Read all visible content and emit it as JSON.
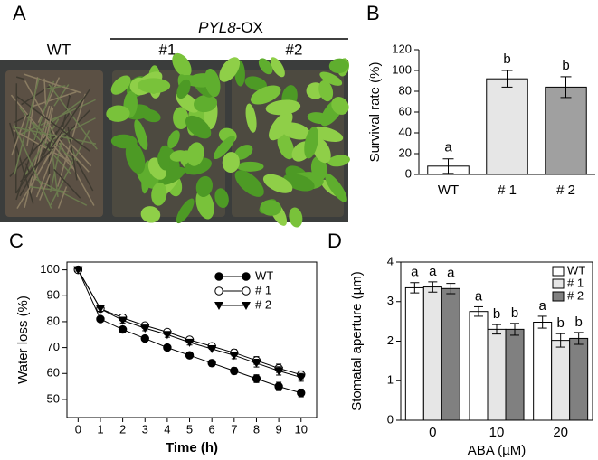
{
  "photo": {
    "panel": "A",
    "title_parts": [
      "PYL8",
      "-OX"
    ],
    "labels": [
      "WT",
      "#1",
      "#2"
    ]
  },
  "chart_data": [
    {
      "type": "bar",
      "panel": "B",
      "ylabel": "Survival rate (%)",
      "categories": [
        "WT",
        "# 1",
        "# 2"
      ],
      "values": [
        8,
        92,
        84
      ],
      "errors": [
        7,
        8,
        10
      ],
      "letters": [
        "a",
        "b",
        "b"
      ],
      "colors": [
        "#ffffff",
        "#e6e6e6",
        "#a0a0a0"
      ],
      "ylim": [
        0,
        120
      ],
      "yticks": [
        0,
        20,
        40,
        60,
        80,
        100,
        120
      ]
    },
    {
      "type": "line",
      "panel": "C",
      "xlabel": "Time (h)",
      "ylabel": "Water loss (%)",
      "x": [
        0,
        1,
        2,
        3,
        4,
        5,
        6,
        7,
        8,
        9,
        10
      ],
      "series": [
        {
          "name": "WT",
          "marker": "filled-circle",
          "color": "#000000",
          "values": [
            100,
            81,
            77,
            73.5,
            70,
            67,
            64,
            61,
            58,
            55,
            52.5
          ],
          "errors": [
            0.5,
            1,
            1,
            1,
            1,
            1,
            1.2,
            1.3,
            1.5,
            1.6,
            1.5
          ]
        },
        {
          "name": "# 1",
          "marker": "open-circle",
          "color": "#000000",
          "values": [
            100,
            85,
            81.5,
            78.5,
            76,
            73,
            70.5,
            68,
            65,
            62,
            59.5
          ],
          "errors": [
            0.5,
            1,
            1,
            1,
            1,
            1,
            1.2,
            1.3,
            1.5,
            1.6,
            1.5
          ]
        },
        {
          "name": "# 2",
          "marker": "filled-triangle",
          "color": "#000000",
          "values": [
            100,
            85,
            80.5,
            77.5,
            75,
            72,
            69.5,
            67,
            64,
            61,
            58.5
          ],
          "errors": [
            0.5,
            1,
            1,
            1,
            1,
            1,
            1.2,
            1.3,
            1.5,
            1.6,
            1.5
          ]
        }
      ],
      "xlim": [
        -0.5,
        10.7
      ],
      "xticks": [
        0,
        1,
        2,
        3,
        4,
        5,
        6,
        7,
        8,
        9,
        10
      ],
      "ylim": [
        43,
        103
      ],
      "yticks": [
        50,
        60,
        70,
        80,
        90,
        100
      ],
      "legend": "upper right"
    },
    {
      "type": "grouped-bar",
      "panel": "D",
      "xlabel": "ABA (µM)",
      "ylabel": "Stomatal aperture (µm)",
      "categories": [
        "0",
        "10",
        "20"
      ],
      "series": [
        {
          "name": "WT",
          "color": "#ffffff",
          "values": [
            3.35,
            2.75,
            2.48
          ],
          "errors": [
            0.13,
            0.12,
            0.15
          ],
          "letters": [
            "a",
            "a",
            "a"
          ]
        },
        {
          "name": "# 1",
          "color": "#e6e6e6",
          "values": [
            3.37,
            2.3,
            2.02
          ],
          "errors": [
            0.13,
            0.12,
            0.17
          ],
          "letters": [
            "a",
            "b",
            "b"
          ]
        },
        {
          "name": "# 2",
          "color": "#808080",
          "values": [
            3.33,
            2.3,
            2.07
          ],
          "errors": [
            0.13,
            0.15,
            0.15
          ],
          "letters": [
            "a",
            "b",
            "b"
          ]
        }
      ],
      "ylim": [
        0,
        4
      ],
      "yticks": [
        0,
        1,
        2,
        3,
        4
      ],
      "legend": "upper right"
    }
  ]
}
